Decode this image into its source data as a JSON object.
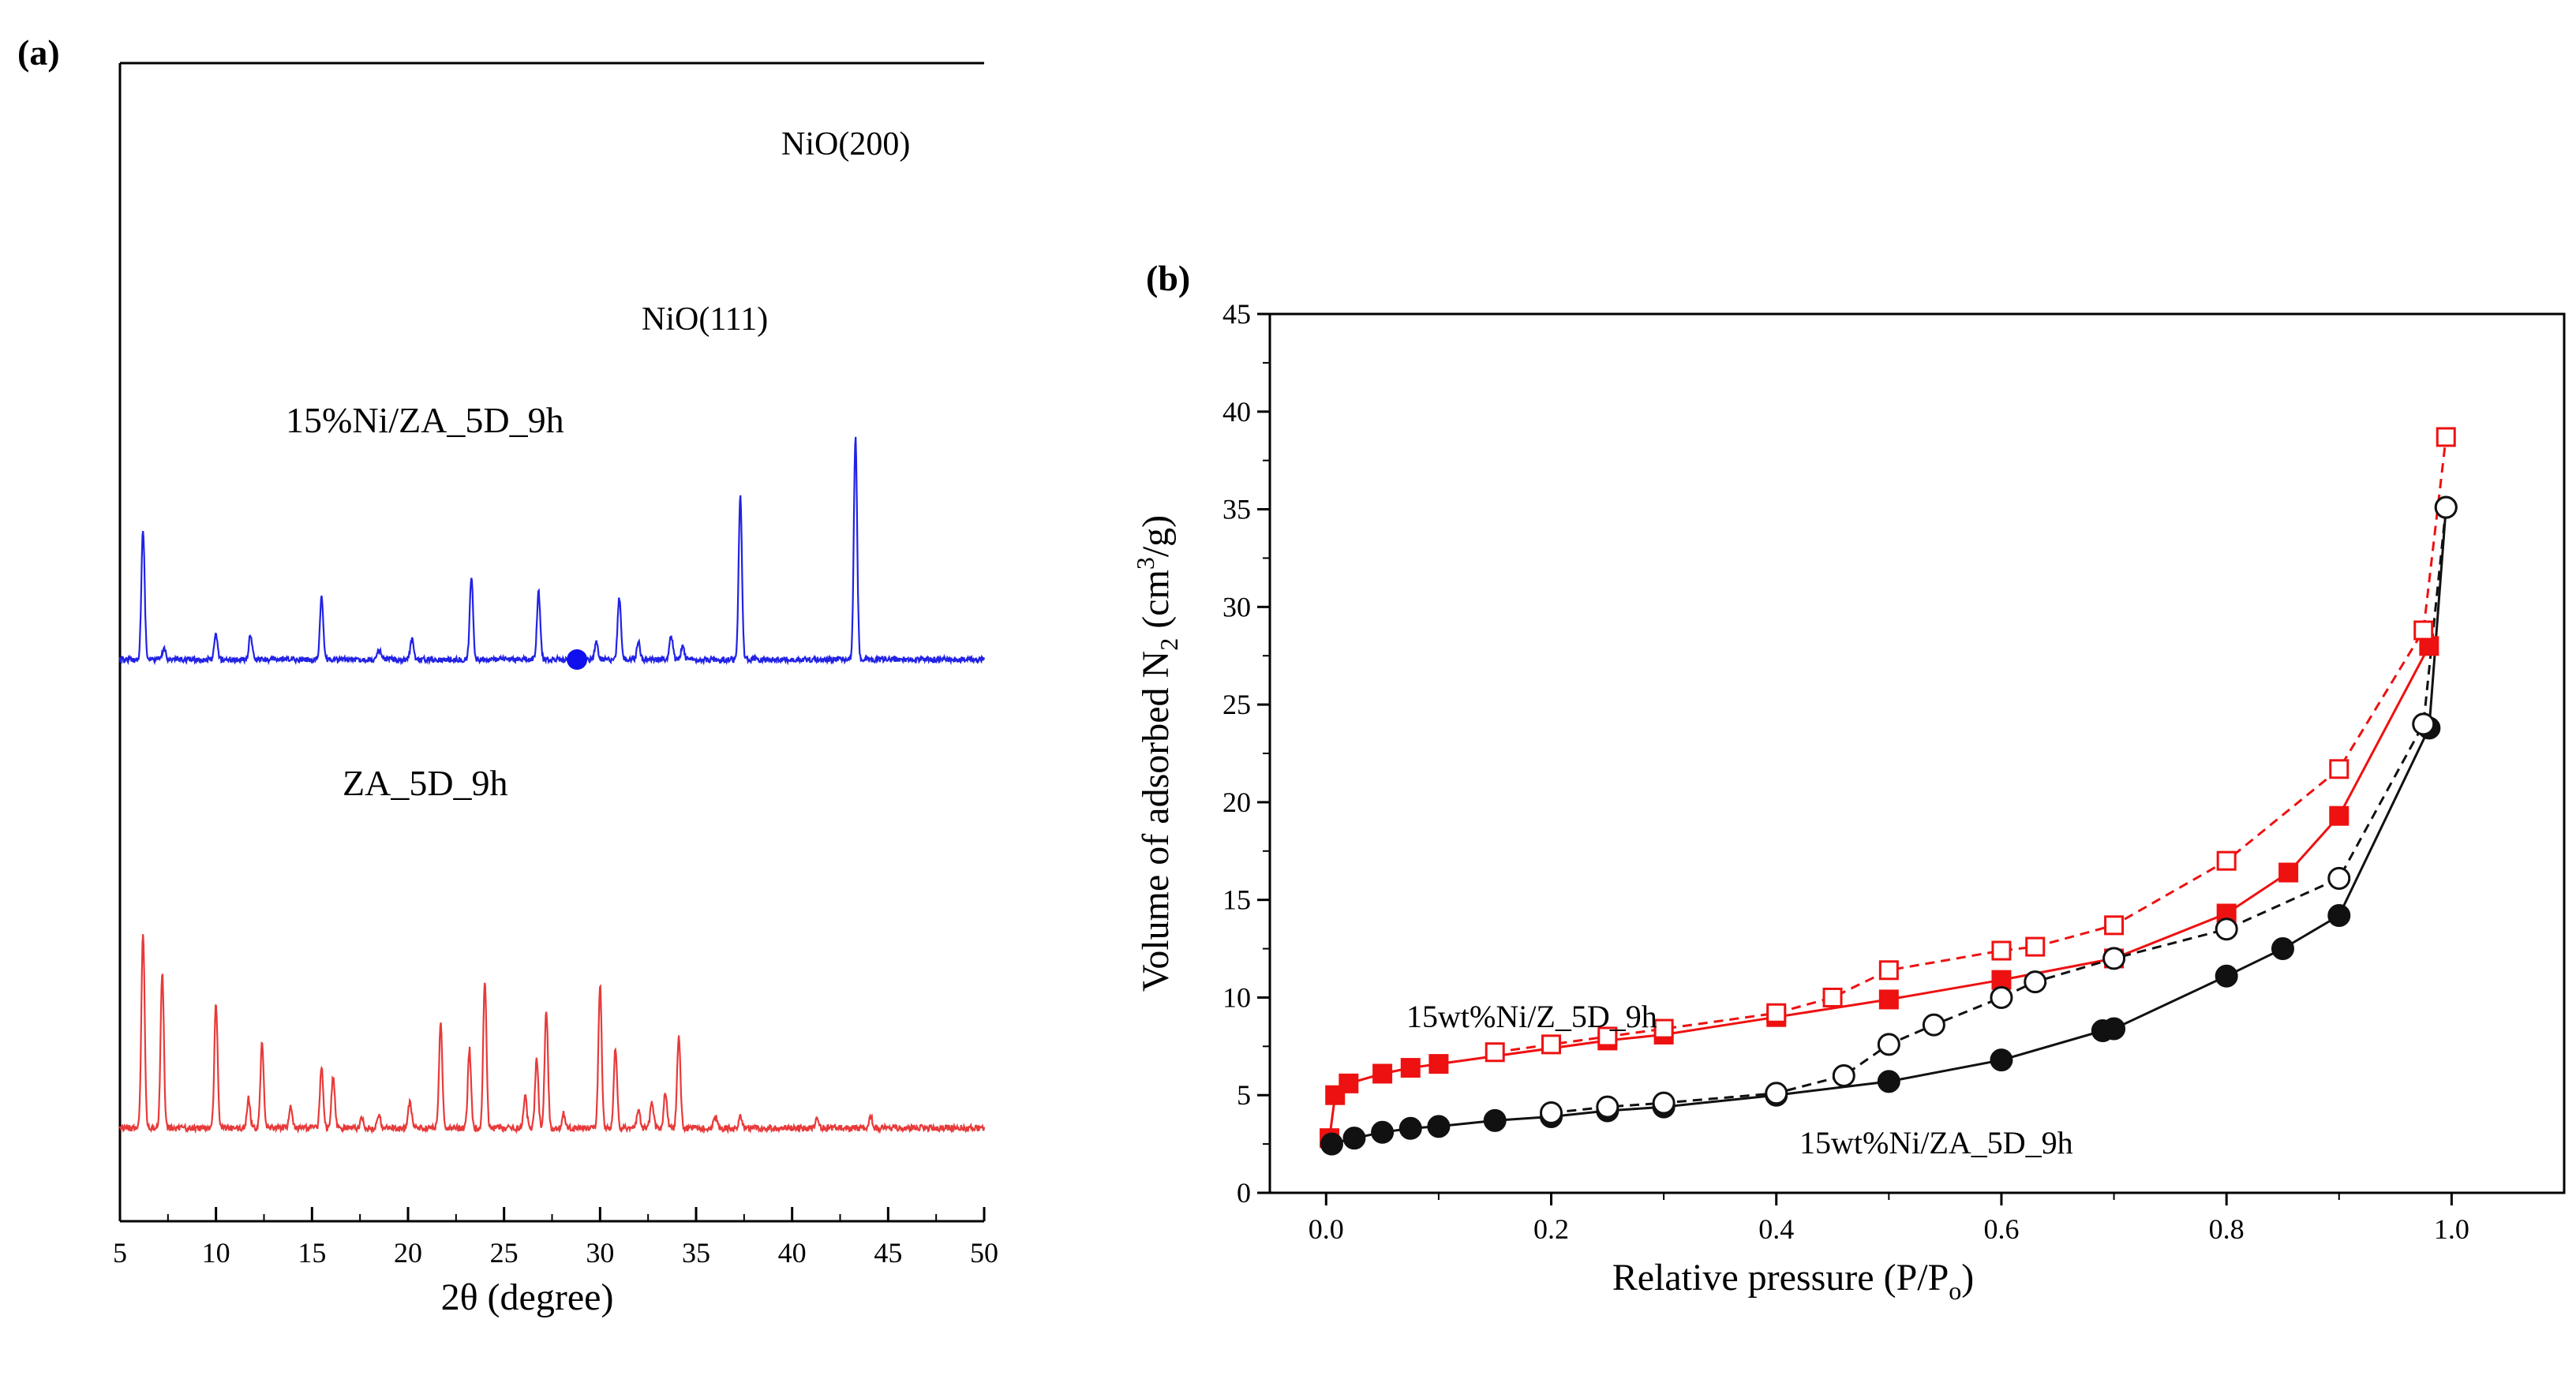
{
  "figure": {
    "panel_a": {
      "label": "(a)",
      "xlabel": "2θ (degree)",
      "x_ticks": [
        "5",
        "10",
        "15",
        "20",
        "25",
        "30",
        "35",
        "40",
        "45",
        "50"
      ],
      "annotations": {
        "nio_200": "NiO(200)",
        "nio_111": "NiO(111)"
      },
      "series_labels": {
        "top": "15%Ni/ZA_5D_9h",
        "bottom": "ZA_5D_9h"
      },
      "colors": {
        "top": "#2222e6",
        "bottom": "#e83a3a",
        "marker": "#1010ee"
      }
    },
    "panel_b": {
      "label": "(b)",
      "xlabel_main": "Relative pressure (P/P",
      "xlabel_sub": "o",
      "xlabel_end": ")",
      "ylabel_main": "Volume of adsorbed N",
      "ylabel_sub2": "2",
      "ylabel_mid": " (cm",
      "ylabel_sup3": "3",
      "ylabel_end": "/g)",
      "y_ticks": [
        "0",
        "5",
        "10",
        "15",
        "20",
        "25",
        "30",
        "35",
        "40",
        "45"
      ],
      "x_ticks": [
        "0.0",
        "0.2",
        "0.4",
        "0.6",
        "0.8",
        "1.0"
      ],
      "series_labels": {
        "red": "15wt%Ni/Z_5D_9h",
        "black": "15wt%Ni/ZA_5D_9h"
      },
      "colors": {
        "red": "#ee1111",
        "black": "#111111"
      }
    }
  },
  "chart_data": [
    {
      "type": "line",
      "title": "(a)",
      "xlabel": "2θ (degree)",
      "ylabel": "",
      "xlim": [
        5,
        50
      ],
      "series": [
        {
          "name": "15%Ni/ZA_5D_9h",
          "baseline": 0,
          "peaks": [
            {
              "x": 6.2,
              "h": 69
            },
            {
              "x": 7.3,
              "h": 6
            },
            {
              "x": 10.0,
              "h": 13
            },
            {
              "x": 11.8,
              "h": 13
            },
            {
              "x": 15.5,
              "h": 33
            },
            {
              "x": 18.5,
              "h": 5
            },
            {
              "x": 20.2,
              "h": 11
            },
            {
              "x": 23.3,
              "h": 44
            },
            {
              "x": 26.8,
              "h": 36
            },
            {
              "x": 29.8,
              "h": 9
            },
            {
              "x": 31.0,
              "h": 33
            },
            {
              "x": 32.0,
              "h": 9
            },
            {
              "x": 33.7,
              "h": 13
            },
            {
              "x": 34.3,
              "h": 7
            },
            {
              "x": 37.3,
              "h": 88
            },
            {
              "x": 43.3,
              "h": 119
            }
          ],
          "marker": {
            "x": 28.8,
            "label": ""
          }
        },
        {
          "name": "ZA_5D_9h",
          "baseline": 0,
          "peaks": [
            {
              "x": 6.2,
              "h": 104
            },
            {
              "x": 7.2,
              "h": 83
            },
            {
              "x": 10.0,
              "h": 67
            },
            {
              "x": 11.7,
              "h": 16
            },
            {
              "x": 12.4,
              "h": 45
            },
            {
              "x": 13.9,
              "h": 11
            },
            {
              "x": 15.5,
              "h": 32
            },
            {
              "x": 16.1,
              "h": 28
            },
            {
              "x": 17.6,
              "h": 5
            },
            {
              "x": 18.5,
              "h": 7
            },
            {
              "x": 20.1,
              "h": 15
            },
            {
              "x": 21.7,
              "h": 56
            },
            {
              "x": 23.2,
              "h": 42
            },
            {
              "x": 24.0,
              "h": 78
            },
            {
              "x": 26.1,
              "h": 17
            },
            {
              "x": 26.7,
              "h": 37
            },
            {
              "x": 27.2,
              "h": 63
            },
            {
              "x": 28.1,
              "h": 8
            },
            {
              "x": 30.0,
              "h": 77
            },
            {
              "x": 30.8,
              "h": 43
            },
            {
              "x": 32.0,
              "h": 10
            },
            {
              "x": 32.7,
              "h": 14
            },
            {
              "x": 33.4,
              "h": 19
            },
            {
              "x": 34.1,
              "h": 50
            },
            {
              "x": 36.0,
              "h": 6
            },
            {
              "x": 37.3,
              "h": 7
            },
            {
              "x": 41.3,
              "h": 5
            },
            {
              "x": 44.1,
              "h": 6
            }
          ]
        }
      ]
    },
    {
      "type": "line",
      "title": "(b)",
      "xlabel": "Relative pressure (P/Po)",
      "ylabel": "Volume of adsorbed N2 (cm3/g)",
      "xlim": [
        -0.05,
        1.1
      ],
      "ylim": [
        0,
        45
      ],
      "series": [
        {
          "name": "15wt%Ni/Z_5D_9h adsorption",
          "style": "filled-square-solid",
          "color": "#ee1111",
          "x": [
            0.003,
            0.008,
            0.02,
            0.05,
            0.075,
            0.1,
            0.25,
            0.3,
            0.4,
            0.5,
            0.6,
            0.7,
            0.8,
            0.855,
            0.9,
            0.98
          ],
          "y": [
            2.8,
            5.0,
            5.6,
            6.1,
            6.4,
            6.6,
            7.8,
            8.1,
            9.0,
            9.9,
            10.9,
            12.0,
            14.3,
            16.4,
            19.3,
            28.0
          ]
        },
        {
          "name": "15wt%Ni/Z_5D_9h desorption",
          "style": "open-square-dashed",
          "color": "#ee1111",
          "x": [
            0.15,
            0.2,
            0.25,
            0.3,
            0.4,
            0.45,
            0.5,
            0.6,
            0.63,
            0.7,
            0.8,
            0.9,
            0.975,
            0.995
          ],
          "y": [
            7.2,
            7.6,
            8.0,
            8.4,
            9.2,
            10.0,
            11.4,
            12.4,
            12.6,
            13.7,
            17.0,
            21.7,
            28.8,
            38.7
          ]
        },
        {
          "name": "15wt%Ni/ZA_5D_9h adsorption",
          "style": "filled-circle-solid",
          "color": "#111111",
          "x": [
            0.005,
            0.025,
            0.05,
            0.075,
            0.1,
            0.15,
            0.2,
            0.25,
            0.3,
            0.4,
            0.5,
            0.6,
            0.69,
            0.7,
            0.8,
            0.85,
            0.9,
            0.98,
            0.995
          ],
          "y": [
            2.5,
            2.8,
            3.1,
            3.3,
            3.4,
            3.7,
            3.9,
            4.2,
            4.4,
            5.0,
            5.7,
            6.8,
            8.3,
            8.4,
            11.1,
            12.5,
            14.2,
            23.8,
            35.1
          ]
        },
        {
          "name": "15wt%Ni/ZA_5D_9h desorption",
          "style": "open-circle-dashed",
          "color": "#111111",
          "x": [
            0.2,
            0.25,
            0.3,
            0.4,
            0.46,
            0.5,
            0.54,
            0.6,
            0.63,
            0.7,
            0.8,
            0.9,
            0.975,
            0.995
          ],
          "y": [
            4.1,
            4.4,
            4.6,
            5.1,
            6.0,
            7.6,
            8.6,
            10.0,
            10.8,
            12.0,
            13.5,
            16.1,
            24.0,
            35.1
          ]
        }
      ]
    }
  ]
}
